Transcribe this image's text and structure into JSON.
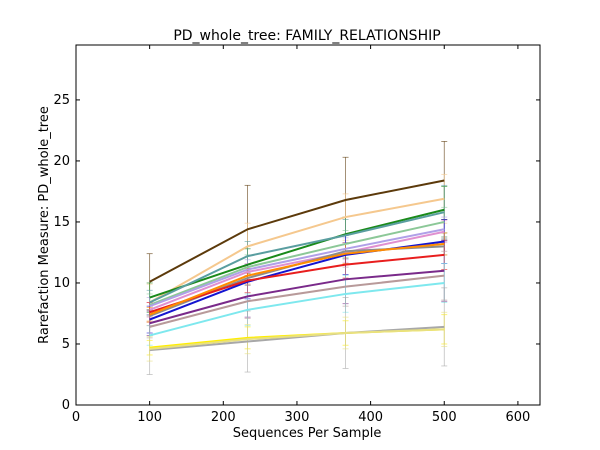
{
  "chart_data": {
    "type": "line",
    "title": "PD_whole_tree: FAMILY_RELATIONSHIP",
    "xlabel": "Sequences Per Sample",
    "ylabel": "Rarefaction Measure: PD_whole_tree",
    "xlim": [
      0,
      630
    ],
    "ylim": [
      0,
      29.5
    ],
    "xticks": [
      0,
      100,
      200,
      300,
      400,
      500,
      600
    ],
    "yticks": [
      0,
      5,
      10,
      15,
      20,
      25
    ],
    "grid": false,
    "x": [
      100,
      233,
      366,
      500
    ],
    "series": [
      {
        "color": "#5c3a0b",
        "values": [
          10.1,
          14.4,
          16.8,
          18.4
        ],
        "err": [
          2.3,
          3.6,
          3.5,
          3.2
        ]
      },
      {
        "color": "#f5c88e",
        "values": [
          8.4,
          13.0,
          15.4,
          16.9
        ],
        "err": [
          1.5,
          1.9,
          1.9,
          2.0
        ]
      },
      {
        "color": "#1a8a1a",
        "values": [
          8.8,
          11.5,
          14.0,
          16.0
        ],
        "err": [
          1.2,
          1.3,
          1.4,
          1.9
        ]
      },
      {
        "color": "#8cc898",
        "values": [
          8.2,
          11.3,
          13.2,
          15.0
        ],
        "err": [
          0.9,
          1.0,
          1.1,
          1.2
        ]
      },
      {
        "color": "#5a9ea0",
        "values": [
          8.4,
          12.2,
          13.9,
          15.8
        ],
        "err": [
          1.0,
          1.2,
          1.3,
          2.2
        ]
      },
      {
        "color": "#b0a0e8",
        "values": [
          8.1,
          11.1,
          12.8,
          14.4
        ],
        "err": [
          0.7,
          0.8,
          0.9,
          1.0
        ]
      },
      {
        "color": "#e090d0",
        "values": [
          7.8,
          10.9,
          12.5,
          14.2
        ],
        "err": [
          0.6,
          0.7,
          0.8,
          0.9
        ]
      },
      {
        "color": "#1414d0",
        "values": [
          7.0,
          10.1,
          12.3,
          13.4
        ],
        "err": [
          1.1,
          1.4,
          1.6,
          1.8
        ]
      },
      {
        "color": "#8c8c8c",
        "values": [
          7.3,
          10.4,
          12.6,
          13.0
        ],
        "err": [
          0.5,
          0.6,
          0.6,
          0.7
        ]
      },
      {
        "color": "#e81e1e",
        "values": [
          7.6,
          10.2,
          11.5,
          12.3
        ],
        "err": [
          0.8,
          1.0,
          1.1,
          1.2
        ]
      },
      {
        "color": "#ff8c00",
        "values": [
          7.4,
          10.6,
          12.4,
          13.2
        ],
        "err": [
          0.6,
          0.7,
          0.8,
          0.9
        ]
      },
      {
        "color": "#7a2a8a",
        "values": [
          6.7,
          8.9,
          10.3,
          11.0
        ],
        "err": [
          1.0,
          1.7,
          2.0,
          2.5
        ]
      },
      {
        "color": "#b89a9a",
        "values": [
          6.4,
          8.5,
          9.7,
          10.6
        ],
        "err": [
          0.9,
          1.4,
          1.6,
          2.0
        ]
      },
      {
        "color": "#7ee8ee",
        "values": [
          5.7,
          7.8,
          9.1,
          10.0
        ],
        "err": [
          0.8,
          1.3,
          1.5,
          1.6
        ]
      },
      {
        "color": "#ffee00",
        "values": [
          4.7,
          5.5,
          5.9,
          6.2
        ],
        "err": [
          0.6,
          0.9,
          1.0,
          1.2
        ]
      },
      {
        "color": "#a8a8a8",
        "values": [
          4.5,
          5.2,
          5.9,
          6.4
        ],
        "err": [
          2.0,
          2.5,
          2.9,
          3.2
        ]
      },
      {
        "color": "#e8e080",
        "values": [
          4.6,
          5.4,
          5.9,
          6.2
        ],
        "err": [
          1.0,
          1.2,
          1.3,
          1.4
        ]
      }
    ]
  }
}
